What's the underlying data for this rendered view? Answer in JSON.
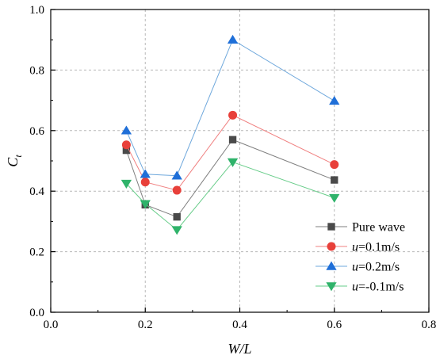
{
  "chart_data": {
    "type": "line",
    "xlabel": "W/L",
    "ylabel": {
      "main": "C",
      "sub": "t"
    },
    "xlim": [
      0.0,
      0.8
    ],
    "ylim": [
      0.0,
      1.0
    ],
    "x_ticks": [
      "0.0",
      "0.2",
      "0.4",
      "0.6",
      "0.8"
    ],
    "y_ticks": [
      "0.0",
      "0.2",
      "0.4",
      "0.6",
      "0.8",
      "1.0"
    ],
    "x_tick_values": [
      0.0,
      0.2,
      0.4,
      0.6,
      0.8
    ],
    "y_tick_values": [
      0.0,
      0.2,
      0.4,
      0.6,
      0.8,
      1.0
    ],
    "grid": true,
    "legend_position": "bottom-right",
    "x": [
      0.16,
      0.2,
      0.267,
      0.385,
      0.6
    ],
    "series": [
      {
        "id": "pure",
        "name": "Pure wave",
        "name_italic": "",
        "name_rest": "Pure wave",
        "marker": "square",
        "line_color": "#7f7f7f",
        "marker_color": "#4a4a4a",
        "values": [
          0.535,
          0.355,
          0.315,
          0.57,
          0.437
        ]
      },
      {
        "id": "u01",
        "name": "u=0.1m/s",
        "name_italic": "u",
        "name_rest": "=0.1m/s",
        "marker": "circle",
        "line_color": "#f08080",
        "marker_color": "#e8403a",
        "values": [
          0.553,
          0.43,
          0.403,
          0.651,
          0.488
        ]
      },
      {
        "id": "u02",
        "name": "u=0.2m/s",
        "name_italic": "u",
        "name_rest": "=0.2m/s",
        "marker": "triangle-up",
        "line_color": "#6fa8dc",
        "marker_color": "#1f6fd8",
        "values": [
          0.6,
          0.456,
          0.451,
          0.9,
          0.698
        ]
      },
      {
        "id": "um01",
        "name": "u=-0.1m/s",
        "name_italic": "u",
        "name_rest": "=-0.1m/s",
        "marker": "triangle-down",
        "line_color": "#66cc88",
        "marker_color": "#2fb36a",
        "values": [
          0.425,
          0.358,
          0.272,
          0.496,
          0.378
        ]
      }
    ]
  }
}
